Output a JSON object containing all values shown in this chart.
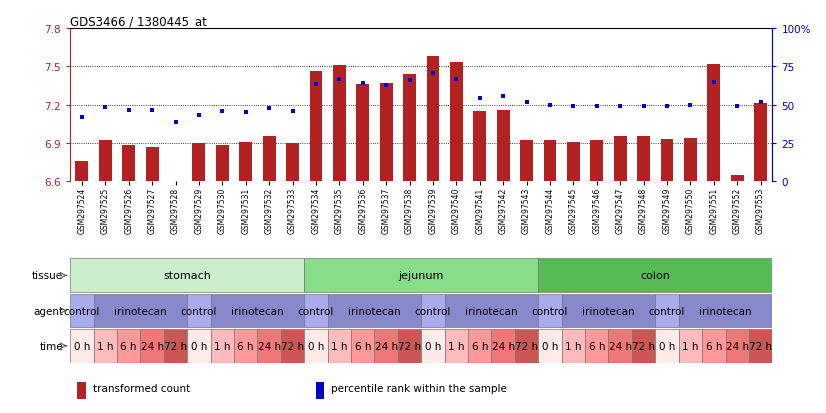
{
  "title": "GDS3466 / 1380445_at",
  "samples": [
    "GSM297524",
    "GSM297525",
    "GSM297526",
    "GSM297527",
    "GSM297528",
    "GSM297529",
    "GSM297530",
    "GSM297531",
    "GSM297532",
    "GSM297533",
    "GSM297534",
    "GSM297535",
    "GSM297536",
    "GSM297537",
    "GSM297538",
    "GSM297539",
    "GSM297540",
    "GSM297541",
    "GSM297542",
    "GSM297543",
    "GSM297544",
    "GSM297545",
    "GSM297546",
    "GSM297547",
    "GSM297548",
    "GSM297549",
    "GSM297550",
    "GSM297551",
    "GSM297552",
    "GSM297553"
  ],
  "bar_values": [
    6.76,
    6.92,
    6.88,
    6.87,
    6.6,
    6.9,
    6.88,
    6.91,
    6.95,
    6.9,
    7.46,
    7.51,
    7.36,
    7.37,
    7.44,
    7.58,
    7.53,
    7.15,
    7.16,
    6.92,
    6.92,
    6.91,
    6.92,
    6.95,
    6.95,
    6.93,
    6.94,
    7.52,
    6.65,
    7.21
  ],
  "percentile_values": [
    7.1,
    7.18,
    7.16,
    7.16,
    7.06,
    7.12,
    7.15,
    7.14,
    7.17,
    7.15,
    7.36,
    7.4,
    7.37,
    7.35,
    7.39,
    7.45,
    7.4,
    7.25,
    7.27,
    7.22,
    7.2,
    7.19,
    7.19,
    7.19,
    7.19,
    7.19,
    7.2,
    7.38,
    7.19,
    7.22
  ],
  "ylim_left": [
    6.6,
    7.8
  ],
  "yticks_left": [
    6.6,
    6.9,
    7.2,
    7.5,
    7.8
  ],
  "yticks_right": [
    0,
    25,
    50,
    75,
    100
  ],
  "bar_color": "#b22222",
  "dot_color": "#0000cd",
  "bar_bottom": 6.6,
  "tissue_defs": [
    {
      "label": "stomach",
      "start": 0,
      "end": 10,
      "color": "#cceecc"
    },
    {
      "label": "jejunum",
      "start": 10,
      "end": 20,
      "color": "#88dd88"
    },
    {
      "label": "colon",
      "start": 20,
      "end": 30,
      "color": "#55bb55"
    }
  ],
  "agent_defs": [
    {
      "label": "control",
      "start": 0,
      "end": 1,
      "color": "#aaaaee"
    },
    {
      "label": "irinotecan",
      "start": 1,
      "end": 5,
      "color": "#8888cc"
    },
    {
      "label": "control",
      "start": 5,
      "end": 6,
      "color": "#aaaaee"
    },
    {
      "label": "irinotecan",
      "start": 6,
      "end": 10,
      "color": "#8888cc"
    },
    {
      "label": "control",
      "start": 10,
      "end": 11,
      "color": "#aaaaee"
    },
    {
      "label": "irinotecan",
      "start": 11,
      "end": 15,
      "color": "#8888cc"
    },
    {
      "label": "control",
      "start": 15,
      "end": 16,
      "color": "#aaaaee"
    },
    {
      "label": "irinotecan",
      "start": 16,
      "end": 20,
      "color": "#8888cc"
    },
    {
      "label": "control",
      "start": 20,
      "end": 21,
      "color": "#aaaaee"
    },
    {
      "label": "irinotecan",
      "start": 21,
      "end": 25,
      "color": "#8888cc"
    },
    {
      "label": "control",
      "start": 25,
      "end": 26,
      "color": "#aaaaee"
    },
    {
      "label": "irinotecan",
      "start": 26,
      "end": 30,
      "color": "#8888cc"
    }
  ],
  "time_colors": [
    "#ffeaea",
    "#ffbbbb",
    "#ff9999",
    "#ee7777",
    "#cc5555"
  ],
  "time_labels": [
    "0 h",
    "1 h",
    "6 h",
    "24 h",
    "72 h"
  ],
  "legend_items": [
    {
      "label": "transformed count",
      "color": "#b22222"
    },
    {
      "label": "percentile rank within the sample",
      "color": "#0000cd"
    }
  ],
  "background_color": "#ffffff",
  "right_axis_color": "#0000cd",
  "left_axis_color": "#b22222"
}
